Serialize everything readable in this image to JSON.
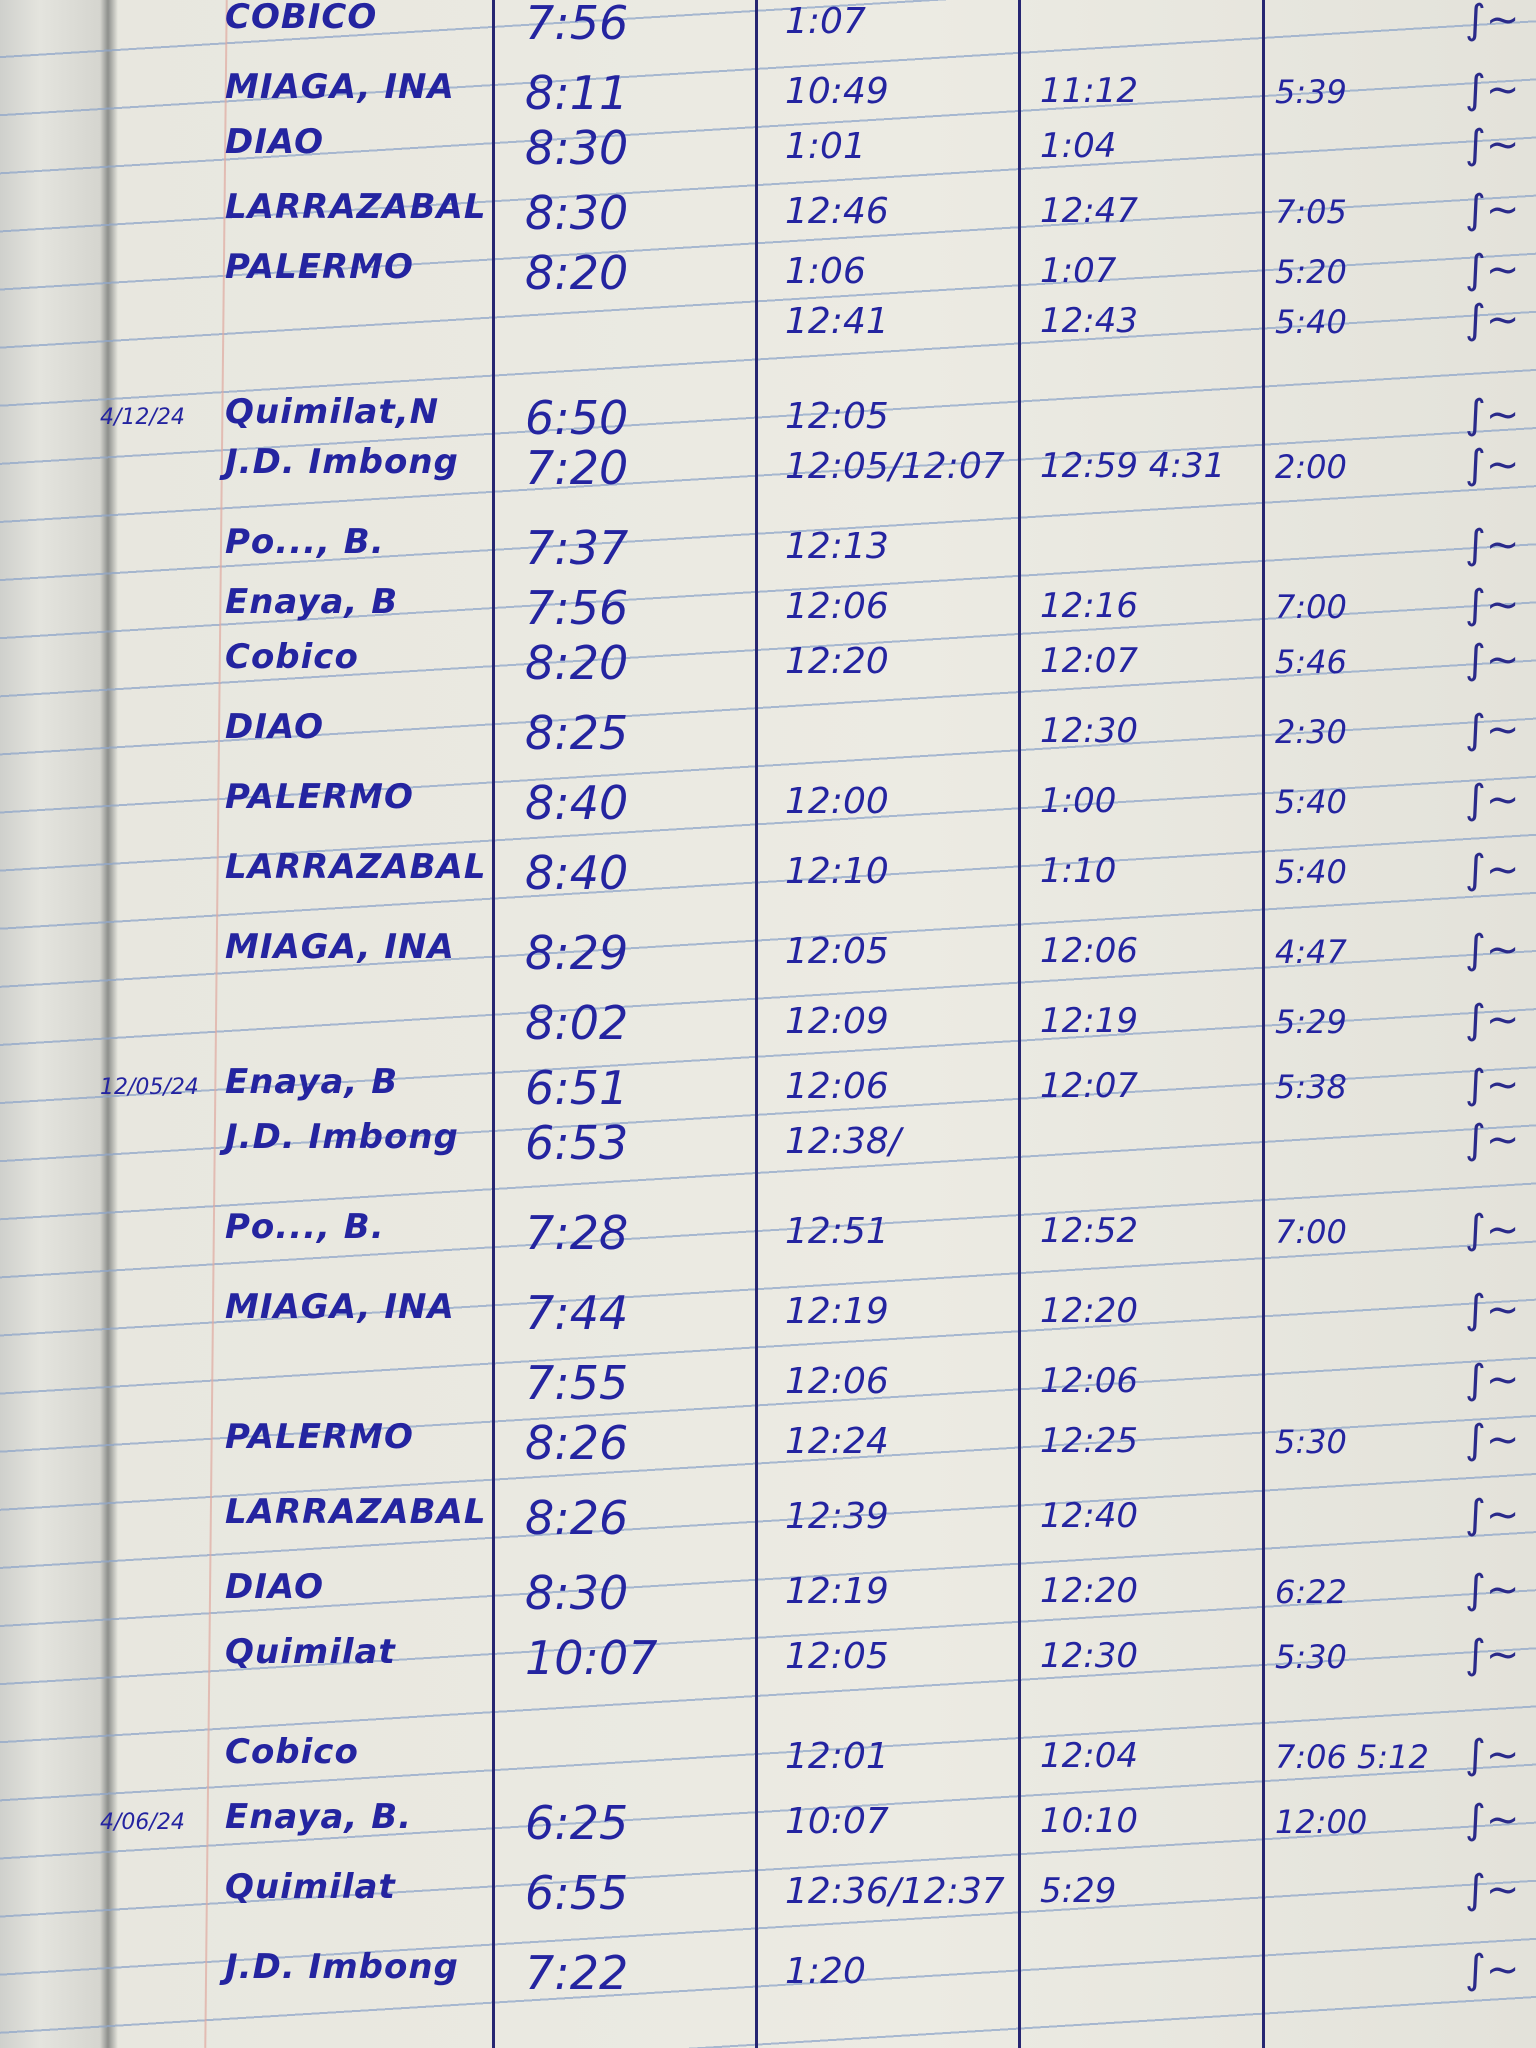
{
  "ink_color": "#2424a0",
  "paper_color": "#ecebe3",
  "rows": [
    {
      "date": "",
      "name": "COBICO",
      "time_in": "7:56",
      "time_out": "1:07",
      "time_in_pm": "",
      "time_out_pm": ""
    },
    {
      "date": "",
      "name": "MIAGA, INA",
      "time_in": "8:11",
      "time_out": "10:49",
      "time_in_pm": "11:12",
      "time_out_pm": "5:39"
    },
    {
      "date": "",
      "name": "DIAO",
      "time_in": "8:30",
      "time_out": "1:01",
      "time_in_pm": "1:04",
      "time_out_pm": ""
    },
    {
      "date": "",
      "name": "LARRAZABAL",
      "time_in": "8:30",
      "time_out": "12:46",
      "time_in_pm": "12:47",
      "time_out_pm": "7:05"
    },
    {
      "date": "",
      "name": "PALERMO",
      "time_in": "8:20",
      "time_out": "1:06",
      "time_in_pm": "1:07",
      "time_out_pm": "5:20"
    },
    {
      "date": "",
      "name": "",
      "time_in": "",
      "time_out": "12:41",
      "time_in_pm": "12:43",
      "time_out_pm": "5:40"
    },
    {
      "date": "4/12/24",
      "name": "Quimilat,N",
      "time_in": "6:50",
      "time_out": "12:05",
      "time_in_pm": "",
      "time_out_pm": ""
    },
    {
      "date": "",
      "name": "J.D. Imbong",
      "time_in": "7:20",
      "time_out": "12:05/12:07",
      "time_in_pm": "12:59  4:31",
      "time_out_pm": "2:00"
    },
    {
      "date": "",
      "name": "Po..., B.",
      "time_in": "7:37",
      "time_out": "12:13",
      "time_in_pm": "",
      "time_out_pm": ""
    },
    {
      "date": "",
      "name": "Enaya, B",
      "time_in": "7:56",
      "time_out": "12:06",
      "time_in_pm": "12:16",
      "time_out_pm": "7:00"
    },
    {
      "date": "",
      "name": "Cobico",
      "time_in": "8:20",
      "time_out": "12:20",
      "time_in_pm": "12:07",
      "time_out_pm": "5:46"
    },
    {
      "date": "",
      "name": "DIAO",
      "time_in": "8:25",
      "time_out": "",
      "time_in_pm": "12:30",
      "time_out_pm": "2:30"
    },
    {
      "date": "",
      "name": "PALERMO",
      "time_in": "8:40",
      "time_out": "12:00",
      "time_in_pm": "1:00",
      "time_out_pm": "5:40"
    },
    {
      "date": "",
      "name": "LARRAZABAL",
      "time_in": "8:40",
      "time_out": "12:10",
      "time_in_pm": "1:10",
      "time_out_pm": "5:40"
    },
    {
      "date": "",
      "name": "MIAGA, INA",
      "time_in": "8:29",
      "time_out": "12:05",
      "time_in_pm": "12:06",
      "time_out_pm": "4:47"
    },
    {
      "date": "",
      "name": "",
      "time_in": "8:02",
      "time_out": "12:09",
      "time_in_pm": "12:19",
      "time_out_pm": "5:29"
    },
    {
      "date": "12/05/24",
      "name": "Enaya, B",
      "time_in": "6:51",
      "time_out": "12:06",
      "time_in_pm": "12:07",
      "time_out_pm": "5:38"
    },
    {
      "date": "",
      "name": "J.D. Imbong",
      "time_in": "6:53",
      "time_out": "12:38/",
      "time_in_pm": "",
      "time_out_pm": ""
    },
    {
      "date": "",
      "name": "Po..., B.",
      "time_in": "7:28",
      "time_out": "12:51",
      "time_in_pm": "12:52",
      "time_out_pm": "7:00"
    },
    {
      "date": "",
      "name": "MIAGA, INA",
      "time_in": "7:44",
      "time_out": "12:19",
      "time_in_pm": "12:20",
      "time_out_pm": ""
    },
    {
      "date": "",
      "name": "",
      "time_in": "7:55",
      "time_out": "12:06",
      "time_in_pm": "12:06",
      "time_out_pm": ""
    },
    {
      "date": "",
      "name": "PALERMO",
      "time_in": "8:26",
      "time_out": "12:24",
      "time_in_pm": "12:25",
      "time_out_pm": "5:30"
    },
    {
      "date": "",
      "name": "LARRAZABAL",
      "time_in": "8:26",
      "time_out": "12:39",
      "time_in_pm": "12:40",
      "time_out_pm": ""
    },
    {
      "date": "",
      "name": "DIAO",
      "time_in": "8:30",
      "time_out": "12:19",
      "time_in_pm": "12:20",
      "time_out_pm": "6:22"
    },
    {
      "date": "",
      "name": "Quimilat",
      "time_in": "10:07",
      "time_out": "12:05",
      "time_in_pm": "12:30",
      "time_out_pm": "5:30"
    },
    {
      "date": "",
      "name": "Cobico",
      "time_in": "",
      "time_out": "12:01",
      "time_in_pm": "12:04",
      "time_out_pm": "7:06  5:12"
    },
    {
      "date": "4/06/24",
      "name": "Enaya, B.",
      "time_in": "6:25",
      "time_out": "10:07",
      "time_in_pm": "10:10",
      "time_out_pm": "12:00"
    },
    {
      "date": "",
      "name": "Quimilat",
      "time_in": "6:55",
      "time_out": "12:36/12:37",
      "time_in_pm": "5:29",
      "time_out_pm": ""
    },
    {
      "date": "",
      "name": "J.D. Imbong",
      "time_in": "7:22",
      "time_out": "1:20",
      "time_in_pm": "",
      "time_out_pm": ""
    }
  ]
}
